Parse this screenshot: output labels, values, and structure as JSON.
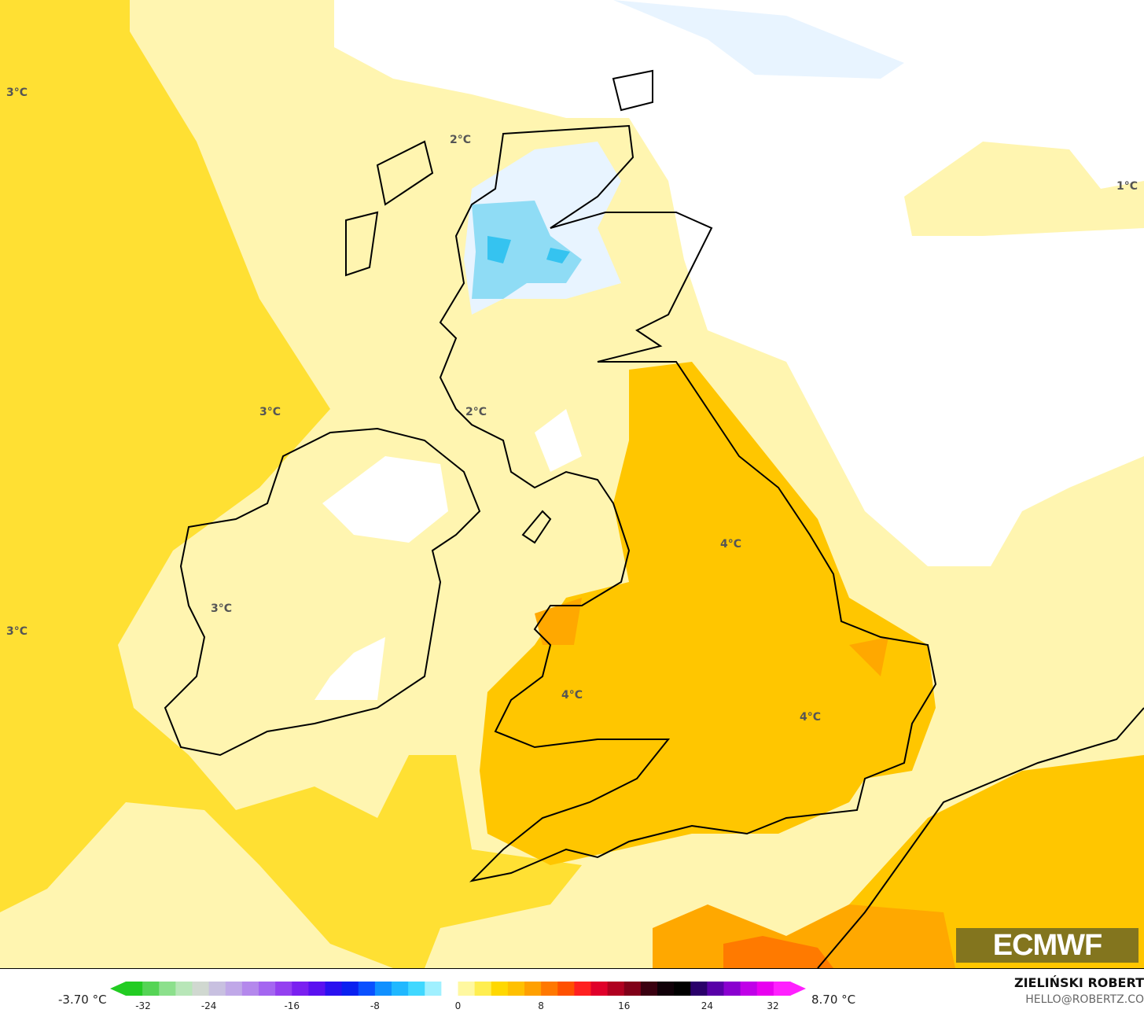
{
  "map": {
    "colors": {
      "ocean_3c": "#ffe033",
      "pale": "#fff5b0",
      "white": "#ffffff",
      "orange": "#ffc600",
      "dark_orange": "#ffa800",
      "hot": "#ff7a00",
      "cold_light": "#e8f4ff",
      "cold": "#8fdcf5",
      "cold_deep": "#35c3f0",
      "coast": "#000000",
      "border": "#555555"
    },
    "labels": [
      "3°C",
      "2°C",
      "1°C",
      "3°C",
      "2°C",
      "4°C",
      "3°C",
      "3°C",
      "4°C",
      "4°C"
    ],
    "logo_text": "ECMWF"
  },
  "legend": {
    "min_label": "-3.70 °C",
    "max_label": "8.70 °C",
    "ticks": [
      "-32",
      "-24",
      "-16",
      "-8",
      "0",
      "8",
      "16",
      "24",
      "32"
    ],
    "colors": [
      "#22cc22",
      "#55d455",
      "#8ce08c",
      "#b8e6b8",
      "#d0d8d0",
      "#c8c0e0",
      "#c0a8e8",
      "#b488ec",
      "#a466f0",
      "#9440f0",
      "#7a20f0",
      "#5a10f0",
      "#2a10f0",
      "#0a20f0",
      "#0a50ff",
      "#1090ff",
      "#20b8ff",
      "#40d8ff",
      "#a0f0ff",
      "#ffffff",
      "#fff8a0",
      "#ffee50",
      "#ffd800",
      "#ffc000",
      "#ffa000",
      "#ff7800",
      "#ff5000",
      "#ff2020",
      "#e0002a",
      "#b00020",
      "#800018",
      "#3a0010",
      "#100008",
      "#000000",
      "#2a006a",
      "#5800a8",
      "#8a00d0",
      "#c000e8",
      "#e800f0",
      "#ff20ff"
    ]
  },
  "credit": {
    "author": "ZIELIŃSKI ROBERT",
    "email": "HELLO@ROBERTZ.CO"
  }
}
